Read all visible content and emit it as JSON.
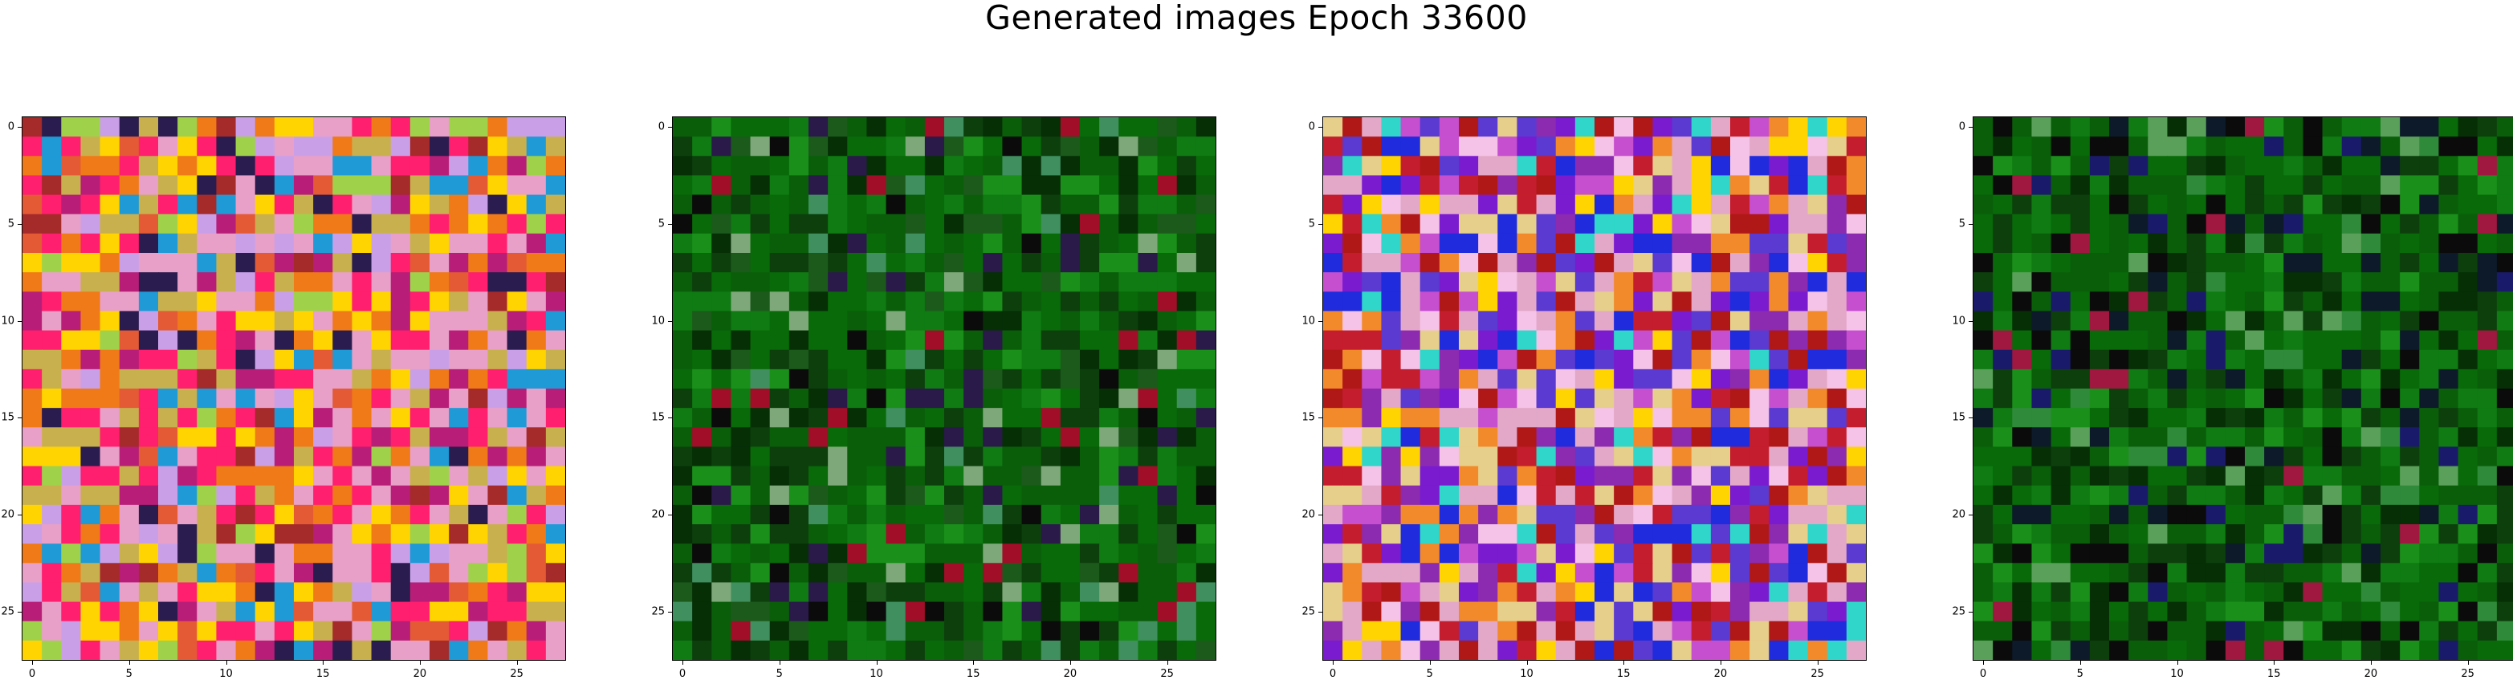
{
  "figure": {
    "title": "Generated images Epoch 33600"
  },
  "chart_data": [
    {
      "type": "heatmap",
      "grid": [
        28,
        28
      ],
      "palette": [
        "#c9b04e",
        "#e8a0c8",
        "#ff1f6e",
        "#f07a18",
        "#a52a2a",
        "#2b1c4f",
        "#9fd24a",
        "#1f9ad6",
        "#ffd400",
        "#c9a0e8",
        "#b81e78",
        "#e35a35"
      ],
      "palette_weights": [
        2,
        3,
        3,
        2,
        1,
        1,
        1,
        1,
        2,
        2,
        2,
        1
      ],
      "seed": 11,
      "xlim": [
        0,
        27
      ],
      "ylim": [
        27,
        0
      ],
      "x_ticks": [
        0,
        5,
        10,
        15,
        20,
        25
      ],
      "y_ticks": [
        0,
        5,
        10,
        15,
        20,
        25
      ]
    },
    {
      "type": "heatmap",
      "grid": [
        28,
        28
      ],
      "palette": [
        "#0a5e0a",
        "#086a08",
        "#0d3f0d",
        "#0f7b12",
        "#1a8f1a",
        "#062f06",
        "#1c5a1c",
        "#3f8f5f",
        "#7fa87a",
        "#0b0b0b",
        "#2a1a4a",
        "#a00e28"
      ],
      "palette_weights": [
        5,
        5,
        4,
        3,
        2,
        3,
        2,
        1,
        1,
        1,
        1,
        1
      ],
      "seed": 23,
      "xlim": [
        0,
        27
      ],
      "ylim": [
        27,
        0
      ],
      "x_ticks": [
        0,
        5,
        10,
        15,
        20,
        25
      ],
      "y_ticks": [
        0,
        5,
        10,
        15,
        20,
        25
      ]
    },
    {
      "type": "heatmap",
      "grid": [
        28,
        28
      ],
      "palette": [
        "#e3a8c8",
        "#c64fd0",
        "#7a1bd0",
        "#ffd400",
        "#1f2bdc",
        "#c41d2d",
        "#e6cf8a",
        "#5a3ad0",
        "#f28a2b",
        "#2fd6c9",
        "#8c2bb0",
        "#f5c3e8",
        "#b01818"
      ],
      "palette_weights": [
        3,
        2,
        2,
        1,
        2,
        2,
        2,
        2,
        2,
        1,
        2,
        2,
        2
      ],
      "seed": 37,
      "xlim": [
        0,
        27
      ],
      "ylim": [
        27,
        0
      ],
      "x_ticks": [
        0,
        5,
        10,
        15,
        20,
        25
      ],
      "y_ticks": [
        0,
        5,
        10,
        15,
        20,
        25
      ]
    },
    {
      "type": "heatmap",
      "grid": [
        28,
        28
      ],
      "palette": [
        "#0a5e0a",
        "#086a08",
        "#0d3f0d",
        "#0f7b12",
        "#1a8f1a",
        "#062f06",
        "#0c1a2a",
        "#0b0b0b",
        "#1a1a6a",
        "#2f8a3a",
        "#5aa05a",
        "#a01840"
      ],
      "palette_weights": [
        5,
        5,
        4,
        3,
        2,
        3,
        2,
        2,
        1,
        1,
        1,
        1
      ],
      "seed": 53,
      "xlim": [
        0,
        27
      ],
      "ylim": [
        27,
        0
      ],
      "x_ticks": [
        0,
        5,
        10,
        15,
        20,
        25
      ],
      "y_ticks": [
        0,
        5,
        10,
        15,
        20,
        25
      ]
    }
  ]
}
